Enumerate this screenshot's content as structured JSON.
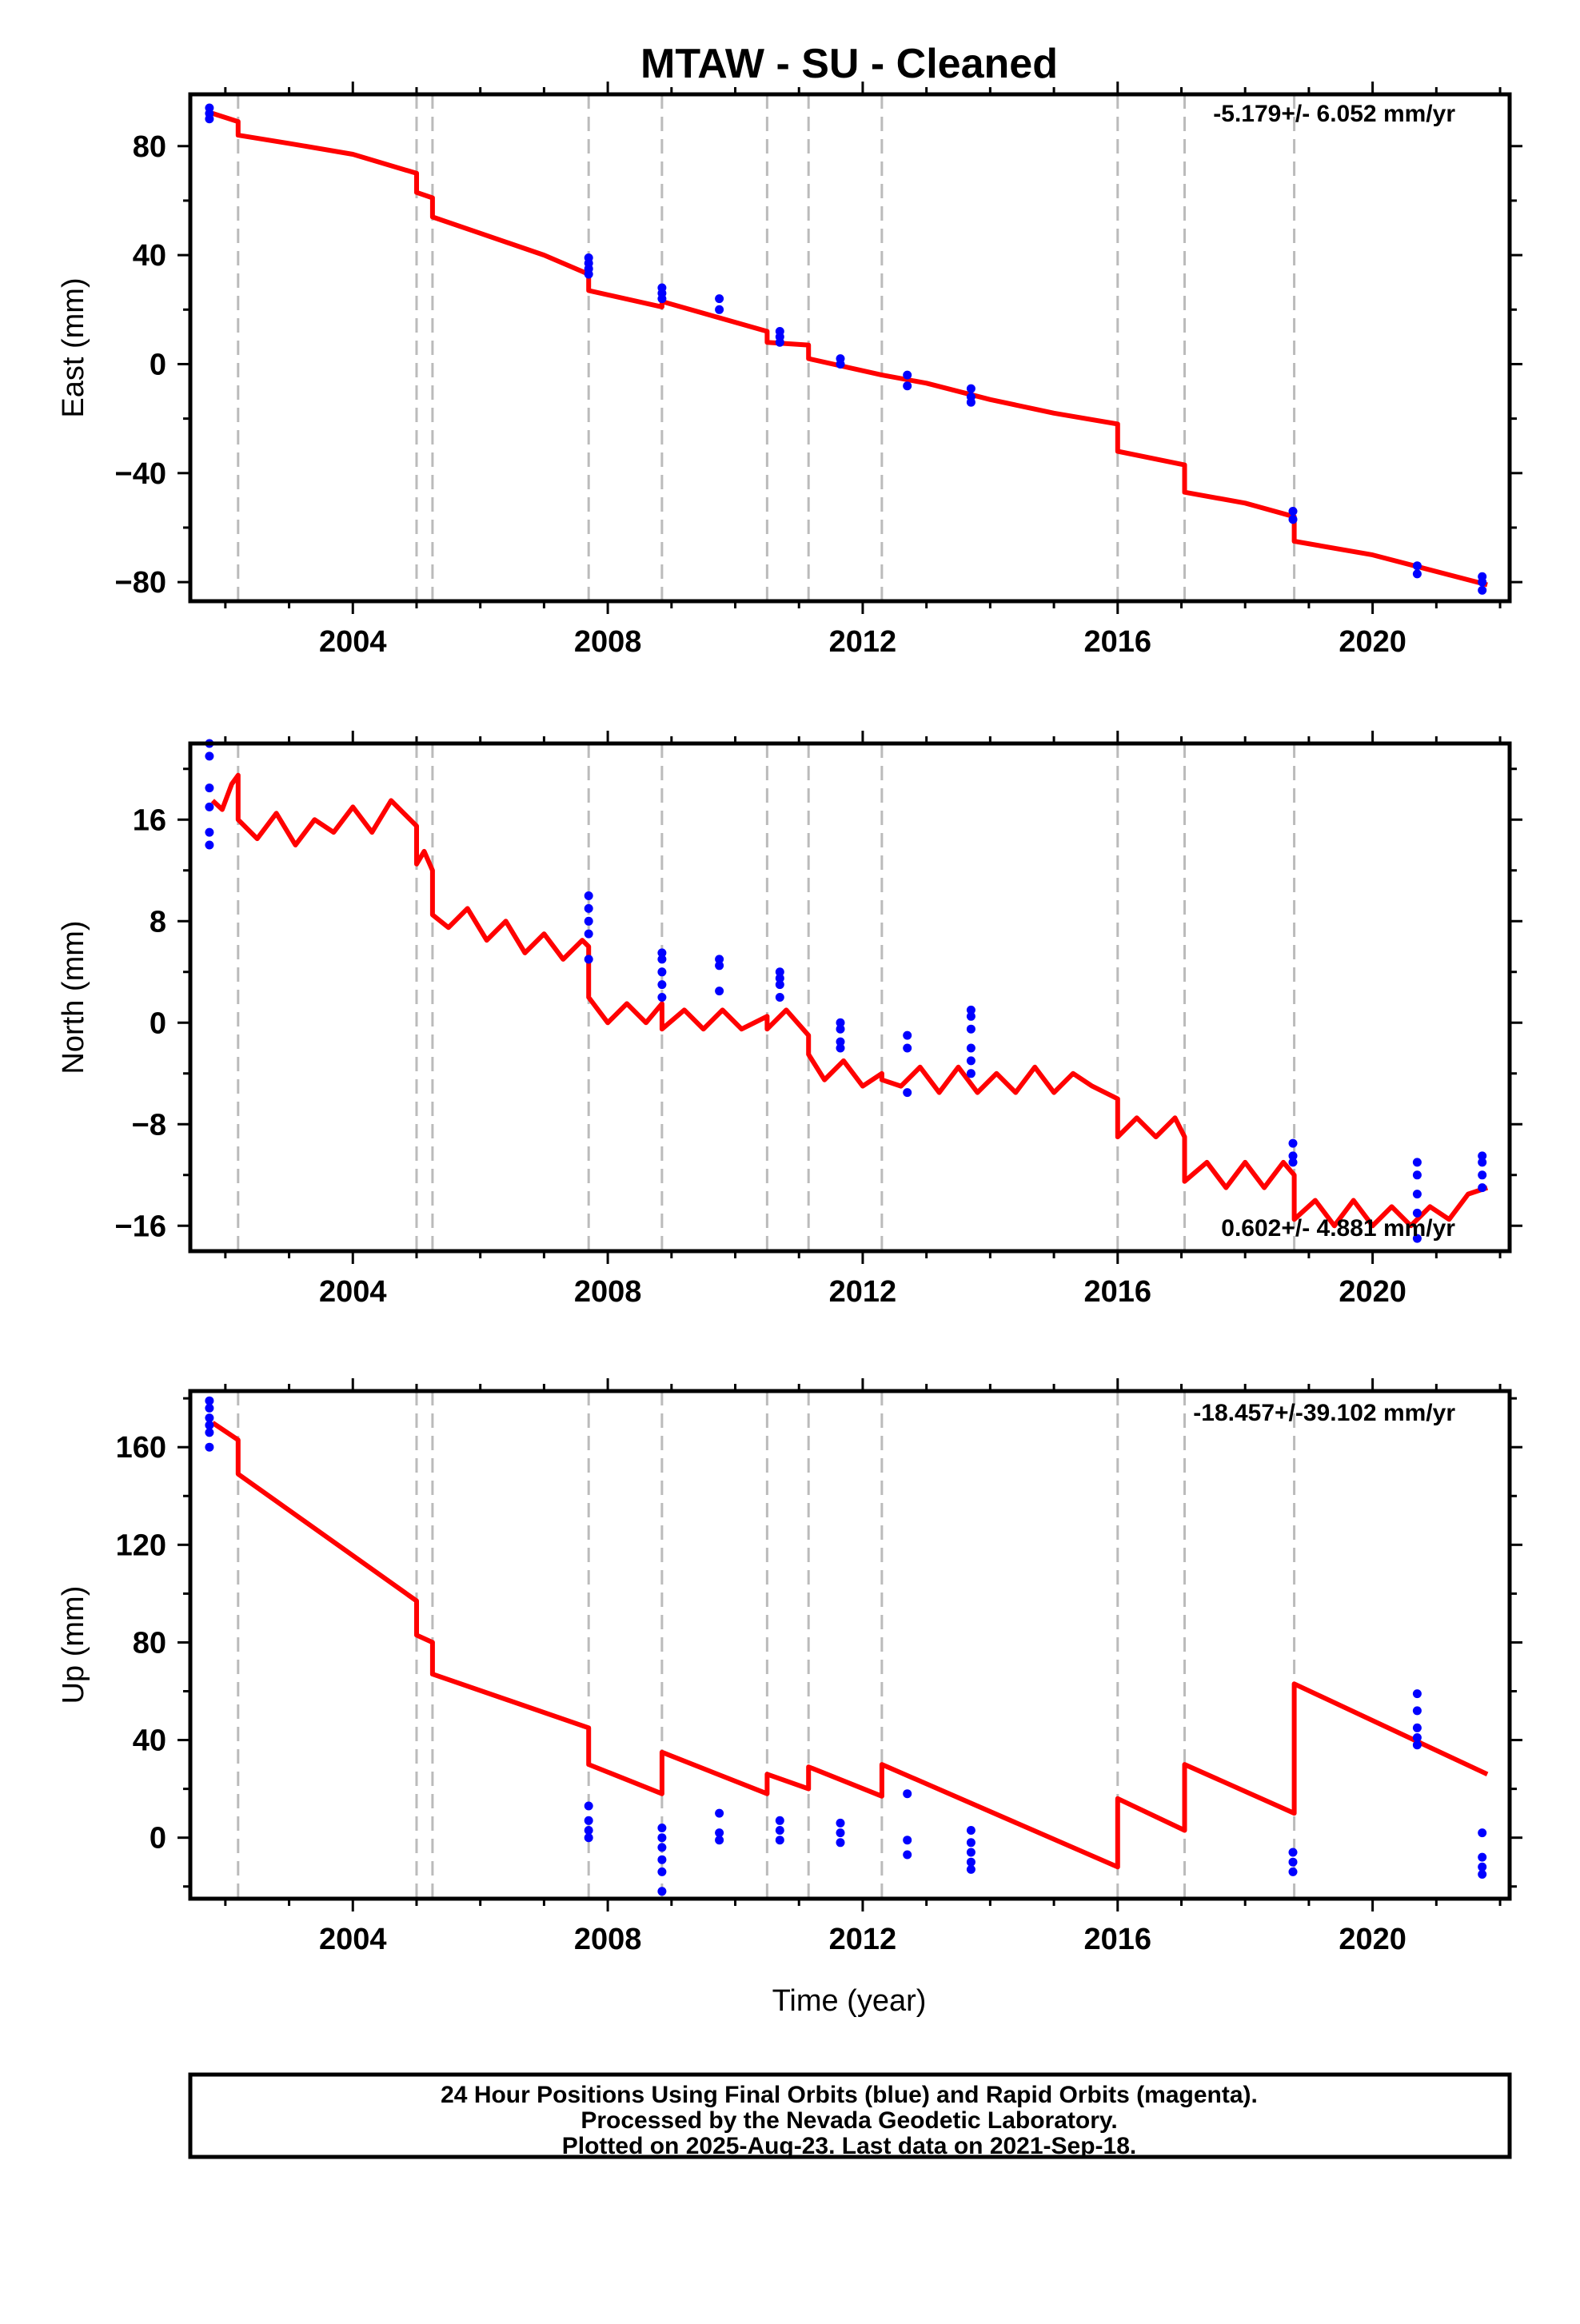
{
  "title": "MTAW  - SU - Cleaned",
  "xlabel": "Time (year)",
  "footer": [
    "24 Hour Positions Using Final Orbits (blue) and Rapid Orbits (magenta).",
    "Processed by the Nevada Geodetic Laboratory.",
    "Plotted on 2025-Aug-23. Last data on 2021-Sep-18."
  ],
  "colors": {
    "model": "#ff0000",
    "final_orbits": "#0000ff",
    "breaks": "#bbbbbb",
    "frame": "#000000"
  },
  "steps": [
    2002.2,
    2005.0,
    2005.25,
    2007.7,
    2008.85,
    2010.5,
    2011.15,
    2012.3,
    2016.0,
    2017.05,
    2018.77
  ],
  "chart_data": [
    {
      "type": "scatter",
      "name": "east",
      "ylabel": "East (mm)",
      "rate_text": "-5.179+/- 6.052 mm/yr",
      "xlim": [
        2001.45,
        2022.15
      ],
      "ylim": [
        -87,
        99
      ],
      "xticks": [
        2004,
        2008,
        2012,
        2016,
        2020
      ],
      "yticks": [
        -80,
        -40,
        0,
        40,
        80
      ],
      "grid": false,
      "model_line": [
        [
          2001.8,
          92
        ],
        [
          2002.2,
          89
        ],
        [
          2002.2,
          84
        ],
        [
          2003,
          81
        ],
        [
          2004,
          77
        ],
        [
          2005,
          70
        ],
        [
          2005,
          63
        ],
        [
          2005.25,
          61
        ],
        [
          2005.25,
          54
        ],
        [
          2006,
          48
        ],
        [
          2007,
          40
        ],
        [
          2007.7,
          33
        ],
        [
          2007.7,
          27
        ],
        [
          2008.85,
          21
        ],
        [
          2008.85,
          23
        ],
        [
          2010.5,
          12
        ],
        [
          2010.5,
          8
        ],
        [
          2011.15,
          7
        ],
        [
          2011.15,
          2
        ],
        [
          2012.3,
          -4
        ],
        [
          2013,
          -7
        ],
        [
          2014,
          -13
        ],
        [
          2015,
          -18
        ],
        [
          2016,
          -22
        ],
        [
          2016,
          -32
        ],
        [
          2017.05,
          -37
        ],
        [
          2017.05,
          -47
        ],
        [
          2018,
          -51
        ],
        [
          2018.77,
          -56
        ],
        [
          2018.77,
          -65
        ],
        [
          2020,
          -70
        ],
        [
          2021.8,
          -81
        ]
      ],
      "points": [
        [
          2001.75,
          94
        ],
        [
          2001.75,
          92
        ],
        [
          2001.75,
          90
        ],
        [
          2007.7,
          39
        ],
        [
          2007.7,
          37
        ],
        [
          2007.7,
          35
        ],
        [
          2007.7,
          33
        ],
        [
          2008.85,
          28
        ],
        [
          2008.85,
          26
        ],
        [
          2008.85,
          24
        ],
        [
          2009.75,
          24
        ],
        [
          2009.75,
          20
        ],
        [
          2010.7,
          12
        ],
        [
          2010.7,
          10
        ],
        [
          2010.7,
          8
        ],
        [
          2011.65,
          2
        ],
        [
          2011.65,
          0
        ],
        [
          2012.7,
          -4
        ],
        [
          2012.7,
          -8
        ],
        [
          2013.7,
          -9
        ],
        [
          2013.7,
          -12
        ],
        [
          2013.7,
          -14
        ],
        [
          2018.75,
          -54
        ],
        [
          2018.75,
          -57
        ],
        [
          2020.7,
          -74
        ],
        [
          2020.7,
          -77
        ],
        [
          2021.72,
          -78
        ],
        [
          2021.72,
          -80
        ],
        [
          2021.72,
          -83
        ]
      ]
    },
    {
      "type": "scatter",
      "name": "north",
      "ylabel": "North (mm)",
      "rate_text": "0.602+/- 4.881 mm/yr",
      "xlim": [
        2001.45,
        2022.15
      ],
      "ylim": [
        -18,
        22
      ],
      "xticks": [
        2004,
        2008,
        2012,
        2016,
        2020
      ],
      "yticks": [
        -16,
        -8,
        0,
        8,
        16
      ],
      "grid": false,
      "model_line": [
        [
          2001.8,
          17.5
        ],
        [
          2001.95,
          16.8
        ],
        [
          2002.1,
          18.8
        ],
        [
          2002.2,
          19.5
        ],
        [
          2002.2,
          16
        ],
        [
          2002.5,
          14.5
        ],
        [
          2002.8,
          16.5
        ],
        [
          2003.1,
          14
        ],
        [
          2003.4,
          16
        ],
        [
          2003.7,
          15
        ],
        [
          2004,
          17
        ],
        [
          2004.3,
          15
        ],
        [
          2004.6,
          17.5
        ],
        [
          2004.9,
          16
        ],
        [
          2005,
          15.5
        ],
        [
          2005,
          12.5
        ],
        [
          2005.12,
          13.5
        ],
        [
          2005.25,
          12
        ],
        [
          2005.25,
          8.5
        ],
        [
          2005.5,
          7.5
        ],
        [
          2005.8,
          9
        ],
        [
          2006.1,
          6.5
        ],
        [
          2006.4,
          8
        ],
        [
          2006.7,
          5.5
        ],
        [
          2007,
          7
        ],
        [
          2007.3,
          5
        ],
        [
          2007.6,
          6.5
        ],
        [
          2007.7,
          6
        ],
        [
          2007.7,
          2
        ],
        [
          2008,
          0
        ],
        [
          2008.3,
          1.5
        ],
        [
          2008.6,
          0
        ],
        [
          2008.85,
          1.5
        ],
        [
          2008.85,
          -0.5
        ],
        [
          2009.2,
          1
        ],
        [
          2009.5,
          -0.5
        ],
        [
          2009.8,
          1
        ],
        [
          2010.1,
          -0.5
        ],
        [
          2010.5,
          0.5
        ],
        [
          2010.5,
          -0.5
        ],
        [
          2010.8,
          1
        ],
        [
          2011.15,
          -1
        ],
        [
          2011.15,
          -2.5
        ],
        [
          2011.4,
          -4.5
        ],
        [
          2011.7,
          -3
        ],
        [
          2012,
          -5
        ],
        [
          2012.3,
          -4
        ],
        [
          2012.3,
          -4.5
        ],
        [
          2012.6,
          -5
        ],
        [
          2012.9,
          -3.5
        ],
        [
          2013.2,
          -5.5
        ],
        [
          2013.5,
          -3.5
        ],
        [
          2013.8,
          -5.5
        ],
        [
          2014.1,
          -4
        ],
        [
          2014.4,
          -5.5
        ],
        [
          2014.7,
          -3.5
        ],
        [
          2015,
          -5.5
        ],
        [
          2015.3,
          -4
        ],
        [
          2015.6,
          -5
        ],
        [
          2016,
          -6
        ],
        [
          2016,
          -9
        ],
        [
          2016.3,
          -7.5
        ],
        [
          2016.6,
          -9
        ],
        [
          2016.9,
          -7.5
        ],
        [
          2017.05,
          -9
        ],
        [
          2017.05,
          -12.5
        ],
        [
          2017.4,
          -11
        ],
        [
          2017.7,
          -13
        ],
        [
          2018,
          -11
        ],
        [
          2018.3,
          -13
        ],
        [
          2018.6,
          -11
        ],
        [
          2018.77,
          -12
        ],
        [
          2018.77,
          -15.5
        ],
        [
          2019.1,
          -14
        ],
        [
          2019.4,
          -16
        ],
        [
          2019.7,
          -14
        ],
        [
          2020,
          -16
        ],
        [
          2020.3,
          -14.5
        ],
        [
          2020.6,
          -16
        ],
        [
          2020.9,
          -14.5
        ],
        [
          2021.2,
          -15.5
        ],
        [
          2021.5,
          -13.5
        ],
        [
          2021.8,
          -13
        ]
      ],
      "points": [
        [
          2001.75,
          22
        ],
        [
          2001.75,
          21
        ],
        [
          2001.75,
          18.5
        ],
        [
          2001.75,
          17
        ],
        [
          2001.75,
          15
        ],
        [
          2001.75,
          14
        ],
        [
          2007.7,
          10
        ],
        [
          2007.7,
          9
        ],
        [
          2007.7,
          8
        ],
        [
          2007.7,
          7
        ],
        [
          2007.7,
          5
        ],
        [
          2008.85,
          5.5
        ],
        [
          2008.85,
          5
        ],
        [
          2008.85,
          4
        ],
        [
          2008.85,
          3
        ],
        [
          2008.85,
          2
        ],
        [
          2009.75,
          5
        ],
        [
          2009.75,
          4.5
        ],
        [
          2009.75,
          2.5
        ],
        [
          2010.7,
          4
        ],
        [
          2010.7,
          3.5
        ],
        [
          2010.7,
          3
        ],
        [
          2010.7,
          2
        ],
        [
          2011.65,
          0
        ],
        [
          2011.65,
          -0.5
        ],
        [
          2011.65,
          -1.5
        ],
        [
          2011.65,
          -2
        ],
        [
          2012.7,
          -1
        ],
        [
          2012.7,
          -2
        ],
        [
          2012.7,
          -5.5
        ],
        [
          2013.7,
          1
        ],
        [
          2013.7,
          0.5
        ],
        [
          2013.7,
          -0.5
        ],
        [
          2013.7,
          -2
        ],
        [
          2013.7,
          -3
        ],
        [
          2013.7,
          -4
        ],
        [
          2018.75,
          -9.5
        ],
        [
          2018.75,
          -10.5
        ],
        [
          2018.75,
          -11
        ],
        [
          2020.7,
          -11
        ],
        [
          2020.7,
          -12
        ],
        [
          2020.7,
          -13.5
        ],
        [
          2020.7,
          -15
        ],
        [
          2020.7,
          -17
        ],
        [
          2021.72,
          -10.5
        ],
        [
          2021.72,
          -11
        ],
        [
          2021.72,
          -12
        ],
        [
          2021.72,
          -13
        ]
      ]
    },
    {
      "type": "scatter",
      "name": "up",
      "ylabel": "Up (mm)",
      "rate_text": "-18.457+/-39.102 mm/yr",
      "xlim": [
        2001.45,
        2022.15
      ],
      "ylim": [
        -25,
        183
      ],
      "xticks": [
        2004,
        2008,
        2012,
        2016,
        2020
      ],
      "yticks": [
        0,
        40,
        80,
        120,
        160
      ],
      "grid": false,
      "model_line": [
        [
          2001.8,
          170
        ],
        [
          2002.2,
          163
        ],
        [
          2002.2,
          149
        ],
        [
          2005,
          97
        ],
        [
          2005,
          83
        ],
        [
          2005.25,
          80
        ],
        [
          2005.25,
          67
        ],
        [
          2007.7,
          45
        ],
        [
          2007.7,
          30
        ],
        [
          2008.85,
          18
        ],
        [
          2008.85,
          35
        ],
        [
          2010.5,
          18
        ],
        [
          2010.5,
          26
        ],
        [
          2011.15,
          20
        ],
        [
          2011.15,
          29
        ],
        [
          2012.3,
          17
        ],
        [
          2012.3,
          30
        ],
        [
          2016,
          -12
        ],
        [
          2016,
          16
        ],
        [
          2017.05,
          3
        ],
        [
          2017.05,
          30
        ],
        [
          2018.77,
          10
        ],
        [
          2018.77,
          63
        ],
        [
          2021.8,
          26
        ]
      ],
      "points": [
        [
          2001.75,
          179
        ],
        [
          2001.75,
          176
        ],
        [
          2001.75,
          172
        ],
        [
          2001.75,
          169
        ],
        [
          2001.75,
          166
        ],
        [
          2001.75,
          160
        ],
        [
          2007.7,
          13
        ],
        [
          2007.7,
          7
        ],
        [
          2007.7,
          3
        ],
        [
          2007.7,
          0
        ],
        [
          2008.85,
          4
        ],
        [
          2008.85,
          0
        ],
        [
          2008.85,
          -4
        ],
        [
          2008.85,
          -9
        ],
        [
          2008.85,
          -14
        ],
        [
          2008.85,
          -22
        ],
        [
          2009.75,
          10
        ],
        [
          2009.75,
          2
        ],
        [
          2009.75,
          -1
        ],
        [
          2010.7,
          7
        ],
        [
          2010.7,
          3
        ],
        [
          2010.7,
          -1
        ],
        [
          2011.65,
          6
        ],
        [
          2011.65,
          2
        ],
        [
          2011.65,
          -2
        ],
        [
          2012.7,
          18
        ],
        [
          2012.7,
          -1
        ],
        [
          2012.7,
          -7
        ],
        [
          2013.7,
          3
        ],
        [
          2013.7,
          -2
        ],
        [
          2013.7,
          -6
        ],
        [
          2013.7,
          -10
        ],
        [
          2013.7,
          -13
        ],
        [
          2018.75,
          -6
        ],
        [
          2018.75,
          -10
        ],
        [
          2018.75,
          -14
        ],
        [
          2020.7,
          59
        ],
        [
          2020.7,
          52
        ],
        [
          2020.7,
          45
        ],
        [
          2020.7,
          41
        ],
        [
          2020.7,
          38
        ],
        [
          2021.72,
          2
        ],
        [
          2021.72,
          -8
        ],
        [
          2021.72,
          -12
        ],
        [
          2021.72,
          -15
        ]
      ]
    }
  ]
}
